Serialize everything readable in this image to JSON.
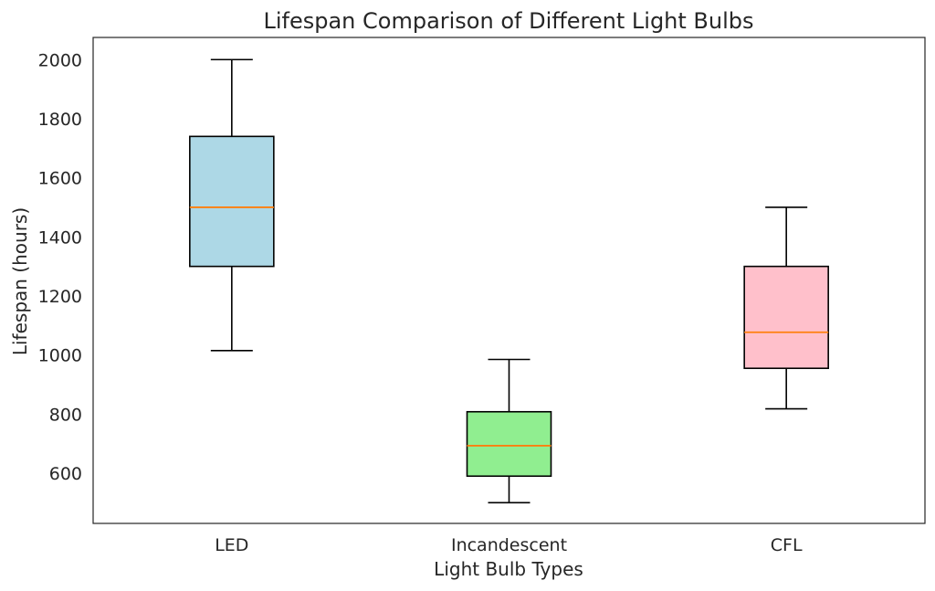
{
  "chart_data": {
    "type": "boxplot",
    "title": "Lifespan Comparison of Different Light Bulbs",
    "xlabel": "Light Bulb Types",
    "ylabel": "Lifespan (hours)",
    "ylim": [
      430,
      2075
    ],
    "yticks": [
      600,
      800,
      1000,
      1200,
      1400,
      1600,
      1800,
      2000
    ],
    "grid": false,
    "categories": [
      "LED",
      "Incandescent",
      "CFL"
    ],
    "boxes": [
      {
        "category": "LED",
        "whisker_low": 1015,
        "q1": 1300,
        "median": 1500,
        "q3": 1740,
        "whisker_high": 2000,
        "color": "#add8e6"
      },
      {
        "category": "Incandescent",
        "whisker_low": 500,
        "q1": 590,
        "median": 693,
        "q3": 808,
        "whisker_high": 985,
        "color": "#90ee90"
      },
      {
        "category": "CFL",
        "whisker_low": 818,
        "q1": 955,
        "median": 1077,
        "q3": 1300,
        "whisker_high": 1500,
        "color": "#ffc0cb"
      }
    ],
    "median_color": "#ff7f0e"
  }
}
